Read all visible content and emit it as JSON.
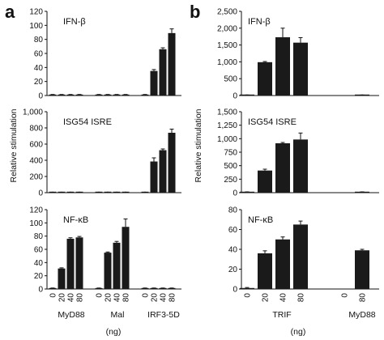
{
  "panels": [
    {
      "letter": "a",
      "ylabel": "Relative stimulation",
      "group_labels": [
        "MyD88",
        "Mal",
        "IRF3-5D"
      ],
      "dose_ticks": [
        "0",
        "20",
        "40",
        "80",
        "0",
        "20",
        "40",
        "80",
        "0",
        "20",
        "40",
        "80"
      ],
      "unit": "(ng)"
    },
    {
      "letter": "b",
      "ylabel": "Relative stimulation",
      "group_labels": [
        "TRIF",
        "MyD88"
      ],
      "dose_ticks": [
        "0",
        "20",
        "40",
        "80",
        "0",
        "80"
      ],
      "unit": "(ng)"
    }
  ],
  "chart_data": [
    {
      "type": "bar",
      "panel": "a",
      "title": "IFN-β",
      "categories": [
        "MyD88 0",
        "MyD88 20",
        "MyD88 40",
        "MyD88 80",
        "Mal 0",
        "Mal 20",
        "Mal 40",
        "Mal 80",
        "IRF3-5D 0",
        "IRF3-5D 20",
        "IRF3-5D 40",
        "IRF3-5D 80"
      ],
      "values": [
        1,
        1,
        1,
        1,
        1,
        1,
        1,
        1,
        1,
        35,
        66,
        89
      ],
      "errors": [
        0.5,
        0.5,
        0.5,
        0.5,
        0.5,
        0.5,
        0.5,
        0.5,
        0.5,
        2,
        2,
        6
      ],
      "ylim": [
        0,
        120
      ],
      "yticks": [
        "0",
        "20",
        "40",
        "60",
        "80",
        "100",
        "120"
      ]
    },
    {
      "type": "bar",
      "panel": "a",
      "title": "ISG54 ISRE",
      "categories": [
        "MyD88 0",
        "MyD88 20",
        "MyD88 40",
        "MyD88 80",
        "Mal 0",
        "Mal 20",
        "Mal 40",
        "Mal 80",
        "IRF3-5D 0",
        "IRF3-5D 20",
        "IRF3-5D 40",
        "IRF3-5D 80"
      ],
      "values": [
        3,
        3,
        3,
        3,
        3,
        3,
        3,
        3,
        3,
        385,
        525,
        740
      ],
      "errors": [
        2,
        2,
        2,
        2,
        2,
        2,
        2,
        2,
        2,
        45,
        15,
        45
      ],
      "ylim": [
        0,
        1000
      ],
      "yticks": [
        "0",
        "200",
        "400",
        "600",
        "800",
        "1,000"
      ]
    },
    {
      "type": "bar",
      "panel": "a",
      "title": "NF-κB",
      "categories": [
        "MyD88 0",
        "MyD88 20",
        "MyD88 40",
        "MyD88 80",
        "Mal 0",
        "Mal 20",
        "Mal 40",
        "Mal 80",
        "IRF3-5D 0",
        "IRF3-5D 20",
        "IRF3-5D 40",
        "IRF3-5D 80"
      ],
      "values": [
        1,
        31,
        76,
        78,
        1,
        55,
        70,
        94,
        1,
        1,
        1,
        1
      ],
      "errors": [
        0.5,
        1,
        1.5,
        1.5,
        0.5,
        1,
        2,
        12,
        0.5,
        0.5,
        0.5,
        0.5
      ],
      "ylim": [
        0,
        120
      ],
      "yticks": [
        "0",
        "20",
        "40",
        "60",
        "80",
        "100",
        "120"
      ]
    },
    {
      "type": "bar",
      "panel": "b",
      "title": "IFN-β",
      "categories": [
        "TRIF 0",
        "TRIF 20",
        "TRIF 40",
        "TRIF 80",
        "MyD88 0",
        "MyD88 80"
      ],
      "values": [
        10,
        990,
        1730,
        1570,
        0,
        10
      ],
      "errors": [
        5,
        20,
        270,
        150,
        0,
        5
      ],
      "ylim": [
        0,
        2500
      ],
      "yticks": [
        "0",
        "500",
        "1,000",
        "1,500",
        "2,000",
        "2,500"
      ]
    },
    {
      "type": "bar",
      "panel": "b",
      "title": "ISG54 ISRE",
      "categories": [
        "TRIF 0",
        "TRIF 20",
        "TRIF 40",
        "TRIF 80",
        "MyD88 0",
        "MyD88 80"
      ],
      "values": [
        10,
        410,
        915,
        985,
        0,
        10
      ],
      "errors": [
        5,
        25,
        15,
        120,
        0,
        5
      ],
      "ylim": [
        0,
        1500
      ],
      "yticks": [
        "0",
        "250",
        "500",
        "750",
        "1,000",
        "1,250",
        "1,500"
      ]
    },
    {
      "type": "bar",
      "panel": "b",
      "title": "NF-κB",
      "categories": [
        "TRIF 0",
        "TRIF 20",
        "TRIF 40",
        "TRIF 80",
        "MyD88 0",
        "MyD88 80"
      ],
      "values": [
        1,
        36,
        50,
        65,
        0,
        39
      ],
      "errors": [
        0.5,
        2.5,
        2.5,
        3.5,
        0,
        1
      ],
      "ylim": [
        0,
        80
      ],
      "yticks": [
        "0",
        "20",
        "40",
        "60",
        "80"
      ]
    }
  ]
}
